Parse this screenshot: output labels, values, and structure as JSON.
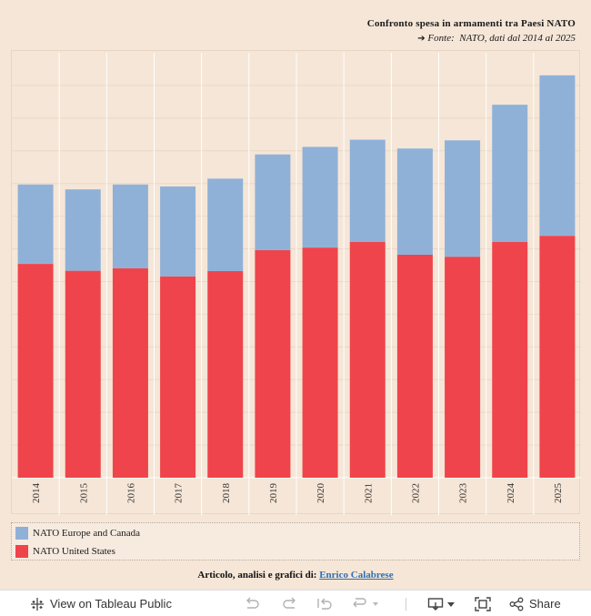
{
  "title": "Confronto spesa in armamenti tra Paesi NATO",
  "subtitle": {
    "arrow": "➔",
    "source_label": "Fonte:",
    "source_text": "NATO, dati dal 2014 al 2025"
  },
  "chart_data": {
    "type": "bar",
    "stacked": true,
    "categories": [
      "2014",
      "2015",
      "2016",
      "2017",
      "2018",
      "2019",
      "2020",
      "2021",
      "2022",
      "2023",
      "2024",
      "2025"
    ],
    "series": [
      {
        "name": "NATO United States",
        "color": "#ef444b",
        "values": [
          654,
          633,
          641,
          616,
          632,
          696,
          704,
          721,
          682,
          676,
          721,
          740
        ]
      },
      {
        "name": "NATO Europe and Canada",
        "color": "#8fb1d8",
        "values": [
          243,
          249,
          256,
          275,
          283,
          293,
          308,
          313,
          325,
          356,
          420,
          491
        ]
      }
    ],
    "ylim": [
      0,
      1300
    ],
    "y_axis_labels": false,
    "grid": true,
    "legend": "bottom"
  },
  "legend": {
    "items": [
      {
        "label": "NATO Europe and Canada",
        "color": "#8fb1d8"
      },
      {
        "label": "NATO United States",
        "color": "#ef444b"
      }
    ]
  },
  "credit": {
    "prefix": "Articolo, analisi e grafici di:",
    "author": "Enrico Calabrese"
  },
  "toolbar": {
    "view_label": "View on Tableau Public",
    "share_label": "Share"
  }
}
